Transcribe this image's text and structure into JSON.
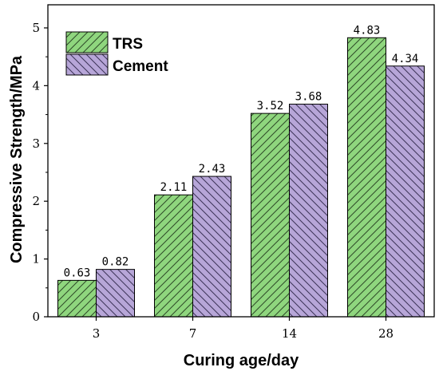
{
  "chart_data": {
    "type": "bar",
    "xlabel": "Curing age/day",
    "ylabel": "Compressive Strength/MPa",
    "categories": [
      "3",
      "7",
      "14",
      "28"
    ],
    "ylim": [
      0,
      5.4
    ],
    "yticks": [
      0,
      1,
      2,
      3,
      4,
      5
    ],
    "series": [
      {
        "name": "TRS",
        "values": [
          0.63,
          2.11,
          3.52,
          4.83
        ],
        "labels": [
          "0.63",
          "2.11",
          "3.52",
          "4.83"
        ],
        "color": "#8fd67e",
        "hatch": "forward-diagonal"
      },
      {
        "name": "Cement",
        "values": [
          0.82,
          2.43,
          3.68,
          4.34
        ],
        "labels": [
          "0.82",
          "2.43",
          "3.68",
          "4.34"
        ],
        "color": "#b7a6d8",
        "hatch": "backward-diagonal"
      }
    ],
    "legend": "top-left",
    "grid": false
  }
}
